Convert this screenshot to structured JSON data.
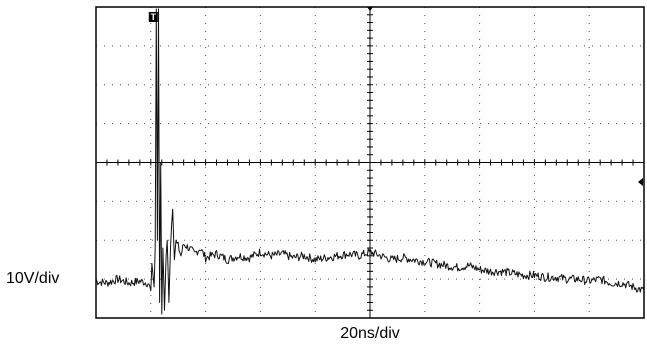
{
  "chart_data": {
    "type": "line",
    "title": "",
    "xlabel": "20ns/div",
    "ylabel": "10V/div",
    "grid": true,
    "x_divisions": 10,
    "y_divisions": 8,
    "x_unit": "div",
    "y_unit": "div",
    "xlim": [
      0,
      10
    ],
    "ylim": [
      -4,
      4
    ],
    "trigger_marker": "T",
    "trigger_level_marker": "left-pointing arrow on right edge",
    "series": [
      {
        "values_note_free": true,
        "x": [
          0.0,
          0.2,
          0.4,
          0.6,
          0.8,
          0.95,
          1.0,
          1.02,
          1.06,
          1.08,
          1.1,
          1.12,
          1.14,
          1.16,
          1.18,
          1.2,
          1.22,
          1.25,
          1.28,
          1.3,
          1.33,
          1.36,
          1.38,
          1.4,
          1.43,
          1.46,
          1.5,
          1.55,
          1.6,
          1.7,
          1.8,
          1.9,
          2.0,
          2.2,
          2.4,
          2.6,
          2.8,
          3.0,
          3.2,
          3.4,
          3.6,
          3.8,
          4.0,
          4.2,
          4.4,
          4.6,
          4.8,
          5.0,
          5.2,
          5.4,
          5.6,
          5.8,
          6.0,
          6.2,
          6.4,
          6.6,
          6.8,
          7.0,
          7.2,
          7.4,
          7.6,
          7.8,
          8.0,
          8.2,
          8.4,
          8.6,
          8.8,
          9.0,
          9.2,
          9.4,
          9.6,
          9.8,
          10.0
        ],
        "y": [
          -3.05,
          -3.1,
          -3.0,
          -3.1,
          -3.05,
          -3.1,
          -3.3,
          -2.6,
          -3.2,
          -2.2,
          3.95,
          -2.0,
          3.95,
          -3.6,
          0.0,
          -3.9,
          -2.2,
          -3.8,
          -2.4,
          -2.0,
          -3.6,
          -2.2,
          -1.6,
          -1.2,
          -2.5,
          -2.0,
          -2.15,
          -2.4,
          -2.1,
          -2.2,
          -2.35,
          -2.2,
          -2.45,
          -2.35,
          -2.5,
          -2.4,
          -2.45,
          -2.3,
          -2.4,
          -2.35,
          -2.45,
          -2.4,
          -2.5,
          -2.45,
          -2.4,
          -2.35,
          -2.4,
          -2.3,
          -2.4,
          -2.5,
          -2.45,
          -2.5,
          -2.55,
          -2.6,
          -2.65,
          -2.7,
          -2.65,
          -2.75,
          -2.8,
          -2.8,
          -2.85,
          -2.9,
          -2.9,
          -2.95,
          -2.95,
          -3.0,
          -3.0,
          -3.05,
          -3.0,
          -3.1,
          -3.1,
          -3.2,
          -3.3
        ]
      }
    ]
  }
}
